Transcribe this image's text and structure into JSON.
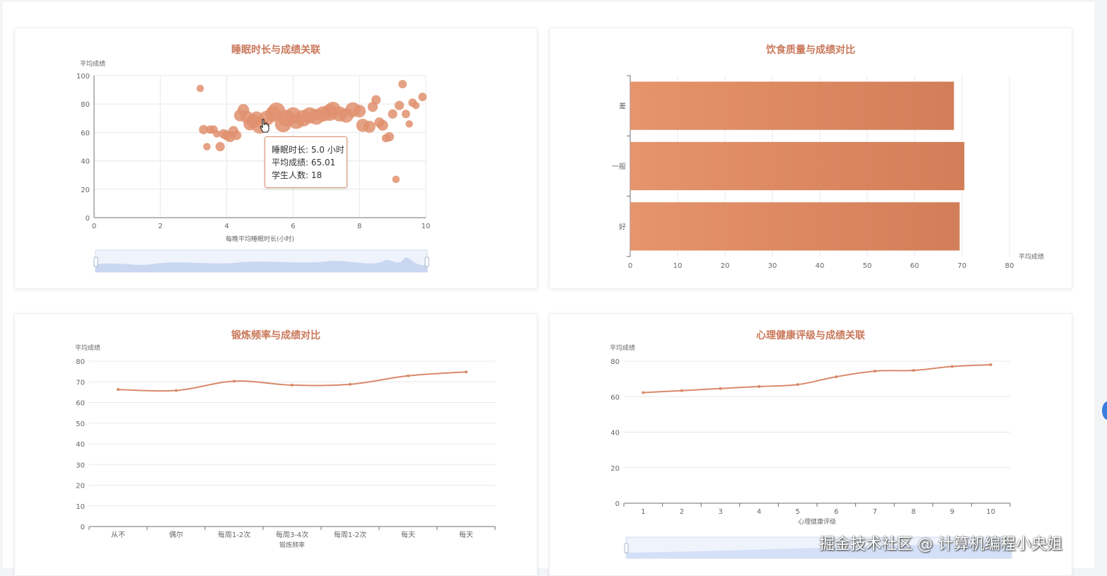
{
  "cards": {
    "sleep": {
      "title": "睡眠时长与成绩关联"
    },
    "diet": {
      "title": "饮食质量与成绩对比"
    },
    "exercise": {
      "title": "锻炼频率与成绩对比"
    },
    "mental": {
      "title": "心理健康评级与成绩关联"
    }
  },
  "tooltip": {
    "line1": "睡眠时长: 5.0 小时",
    "line2": "平均成绩: 65.01",
    "line3": "学生人数: 18"
  },
  "watermark": "掘金技术社区 @ 计算机编程小央姐",
  "colors": {
    "accent": "#e0906f",
    "accent_dark": "#d07d57",
    "title": "#c9785a",
    "zoom": "#d3e0f7"
  },
  "chart_data": [
    {
      "id": "sleep",
      "type": "scatter",
      "title": "睡眠时长与成绩关联",
      "xlabel": "每晚平均睡眠时长(小时)",
      "ylabel": "平均成绩",
      "xlim": [
        0,
        10
      ],
      "ylim": [
        0,
        100
      ],
      "xticks": [
        "0",
        "2",
        "4",
        "6",
        "8",
        "10"
      ],
      "yticks": [
        "0",
        "20",
        "40",
        "60",
        "80",
        "100"
      ],
      "points": [
        {
          "x": 3.2,
          "y": 91,
          "n": 2
        },
        {
          "x": 3.3,
          "y": 62,
          "n": 4
        },
        {
          "x": 3.4,
          "y": 50,
          "n": 2
        },
        {
          "x": 3.5,
          "y": 62,
          "n": 3
        },
        {
          "x": 3.6,
          "y": 62,
          "n": 3
        },
        {
          "x": 3.7,
          "y": 59,
          "n": 2
        },
        {
          "x": 3.8,
          "y": 50,
          "n": 4
        },
        {
          "x": 3.9,
          "y": 59,
          "n": 4
        },
        {
          "x": 4.0,
          "y": 58,
          "n": 5
        },
        {
          "x": 4.1,
          "y": 57,
          "n": 6
        },
        {
          "x": 4.2,
          "y": 61,
          "n": 5
        },
        {
          "x": 4.3,
          "y": 58,
          "n": 4
        },
        {
          "x": 4.4,
          "y": 72,
          "n": 8
        },
        {
          "x": 4.5,
          "y": 76,
          "n": 7
        },
        {
          "x": 4.6,
          "y": 71,
          "n": 9
        },
        {
          "x": 4.7,
          "y": 66,
          "n": 10
        },
        {
          "x": 4.8,
          "y": 68,
          "n": 12
        },
        {
          "x": 4.9,
          "y": 70,
          "n": 11
        },
        {
          "x": 5.0,
          "y": 65.01,
          "n": 18
        },
        {
          "x": 5.2,
          "y": 70,
          "n": 14
        },
        {
          "x": 5.4,
          "y": 73,
          "n": 16
        },
        {
          "x": 5.5,
          "y": 75,
          "n": 20
        },
        {
          "x": 5.7,
          "y": 66,
          "n": 18
        },
        {
          "x": 5.8,
          "y": 70,
          "n": 19
        },
        {
          "x": 6.0,
          "y": 72,
          "n": 17
        },
        {
          "x": 6.1,
          "y": 68,
          "n": 16
        },
        {
          "x": 6.3,
          "y": 70,
          "n": 18
        },
        {
          "x": 6.5,
          "y": 72,
          "n": 17
        },
        {
          "x": 6.7,
          "y": 71,
          "n": 16
        },
        {
          "x": 6.9,
          "y": 73,
          "n": 15
        },
        {
          "x": 7.1,
          "y": 74,
          "n": 18
        },
        {
          "x": 7.2,
          "y": 76,
          "n": 16
        },
        {
          "x": 7.4,
          "y": 73,
          "n": 14
        },
        {
          "x": 7.6,
          "y": 72,
          "n": 13
        },
        {
          "x": 7.8,
          "y": 76,
          "n": 14
        },
        {
          "x": 8.0,
          "y": 75,
          "n": 9
        },
        {
          "x": 8.1,
          "y": 65,
          "n": 10
        },
        {
          "x": 8.3,
          "y": 64,
          "n": 8
        },
        {
          "x": 8.4,
          "y": 78,
          "n": 5
        },
        {
          "x": 8.5,
          "y": 83,
          "n": 4
        },
        {
          "x": 8.6,
          "y": 67,
          "n": 5
        },
        {
          "x": 8.7,
          "y": 65,
          "n": 6
        },
        {
          "x": 8.8,
          "y": 56,
          "n": 3
        },
        {
          "x": 8.9,
          "y": 57,
          "n": 4
        },
        {
          "x": 9.0,
          "y": 73,
          "n": 4
        },
        {
          "x": 9.1,
          "y": 27,
          "n": 2
        },
        {
          "x": 9.2,
          "y": 79,
          "n": 4
        },
        {
          "x": 9.3,
          "y": 94,
          "n": 3
        },
        {
          "x": 9.4,
          "y": 73,
          "n": 3
        },
        {
          "x": 9.5,
          "y": 66,
          "n": 2
        },
        {
          "x": 9.6,
          "y": 81,
          "n": 3
        },
        {
          "x": 9.7,
          "y": 79,
          "n": 2
        },
        {
          "x": 9.9,
          "y": 85,
          "n": 3
        }
      ]
    },
    {
      "id": "diet",
      "type": "bar",
      "title": "饮食质量与成绩对比",
      "orientation": "horizontal",
      "categories": [
        "好",
        "一般",
        "差"
      ],
      "values": [
        69.5,
        70.5,
        68.3
      ],
      "xlabel": "平均成绩",
      "xlim": [
        0,
        80
      ],
      "xticks": [
        "0",
        "10",
        "20",
        "30",
        "40",
        "50",
        "60",
        "70",
        "80"
      ]
    },
    {
      "id": "exercise",
      "type": "line",
      "title": "锻炼频率与成绩对比",
      "categories": [
        "从不",
        "偶尔",
        "每周1-2次",
        "每周3-4次",
        "每周1-2次",
        "每天",
        "每天"
      ],
      "values": [
        66.3,
        65.8,
        70.3,
        68.4,
        68.8,
        72.9,
        74.8
      ],
      "xlabel": "锻炼频率",
      "ylabel": "平均成绩",
      "ylim": [
        0,
        80
      ],
      "yticks": [
        "0",
        "10",
        "20",
        "30",
        "40",
        "50",
        "60",
        "70",
        "80"
      ]
    },
    {
      "id": "mental",
      "type": "line",
      "title": "心理健康评级与成绩关联",
      "categories": [
        "1",
        "2",
        "3",
        "4",
        "5",
        "6",
        "7",
        "8",
        "9",
        "10"
      ],
      "values": [
        62.3,
        63.4,
        64.6,
        65.7,
        66.8,
        71.2,
        74.4,
        74.8,
        77.0,
        78.0
      ],
      "xlabel": "心理健康评级",
      "ylabel": "平均成绩",
      "ylim": [
        0,
        80
      ],
      "yticks": [
        "0",
        "20",
        "40",
        "60",
        "80"
      ]
    }
  ]
}
